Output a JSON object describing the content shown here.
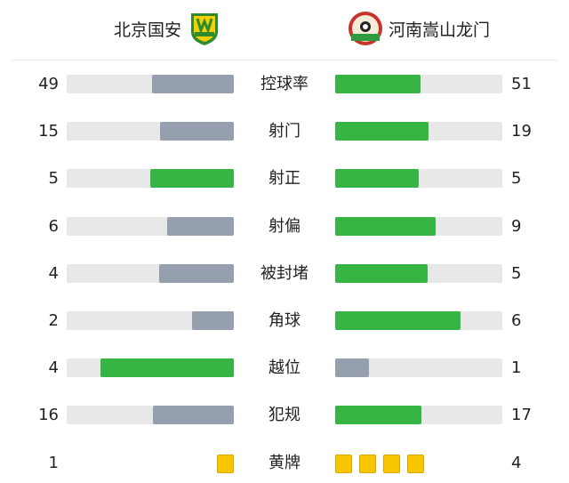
{
  "home": {
    "name": "北京国安",
    "logo_text": "GUOAN"
  },
  "away": {
    "name": "河南嵩山龙门",
    "logo_text": "河南嵩山龙门"
  },
  "colors": {
    "leader": "#36b545",
    "trailer": "#969fae",
    "track": "#e8e8e8",
    "yellow": "#f7c600"
  },
  "stats": [
    {
      "label": "控球率",
      "home": "49",
      "away": "51"
    },
    {
      "label": "射门",
      "home": "15",
      "away": "19"
    },
    {
      "label": "射正",
      "home": "5",
      "away": "5"
    },
    {
      "label": "射偏",
      "home": "6",
      "away": "9"
    },
    {
      "label": "被封堵",
      "home": "4",
      "away": "5"
    },
    {
      "label": "角球",
      "home": "2",
      "away": "6"
    },
    {
      "label": "越位",
      "home": "4",
      "away": "1"
    },
    {
      "label": "犯规",
      "home": "16",
      "away": "17"
    }
  ],
  "yellow": {
    "label": "黄牌",
    "home": "1",
    "away": "4"
  }
}
